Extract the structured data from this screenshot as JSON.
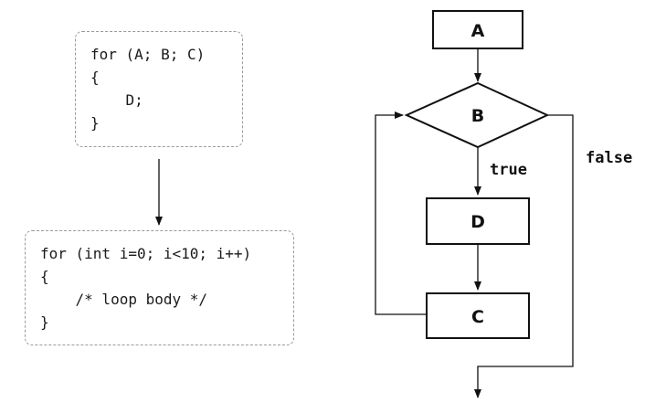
{
  "generic_form": {
    "lines": [
      "for (A; B; C)",
      "{",
      "    D;",
      "}"
    ]
  },
  "example_form": {
    "lines": [
      "for (int i=0; i<10; i++)",
      "{",
      "    /* loop body */",
      "}"
    ]
  },
  "flowchart": {
    "nodes": {
      "init": "A",
      "condition": "B",
      "body": "D",
      "update": "C"
    },
    "edge_labels": {
      "true_branch": "true",
      "false_branch": "false"
    }
  }
}
